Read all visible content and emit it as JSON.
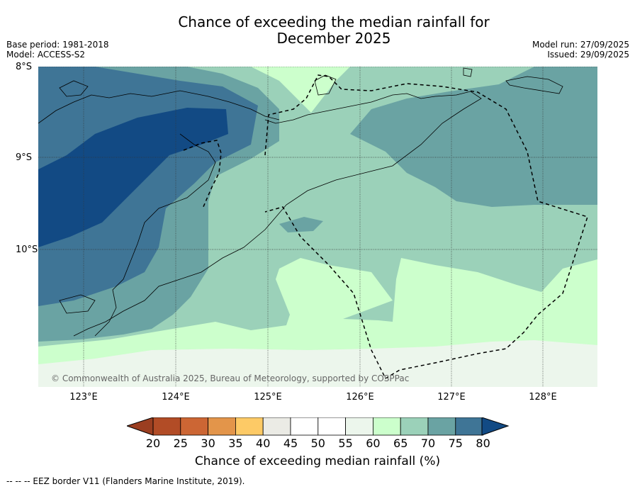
{
  "title": {
    "line1": "Chance of exceeding the median rainfall for",
    "line2": "December 2025"
  },
  "meta": {
    "base_period": "Base period: 1981-2018",
    "model": "Model: ACCESS-S2",
    "model_run": "Model run: 27/09/2025",
    "issued": "Issued: 29/09/2025"
  },
  "axes": {
    "lat_labels": [
      "8°S",
      "9°S",
      "10°S"
    ],
    "lon_labels": [
      "123°E",
      "124°E",
      "125°E",
      "126°E",
      "127°E",
      "128°E"
    ]
  },
  "copyright": "© Commonwealth of Australia 2025, Bureau of Meteorology, supported by COSPPac",
  "colorbar": {
    "title": "Chance of exceeding median rainfall (%)",
    "ticks": [
      "20",
      "25",
      "30",
      "35",
      "40",
      "45",
      "50",
      "55",
      "60",
      "65",
      "70",
      "75",
      "80"
    ],
    "colors": [
      "#b24c26",
      "#cc6634",
      "#e3954a",
      "#fdca66",
      "#ebebe5",
      "#ffffff",
      "#ffffff",
      "#ecf6ec",
      "#ccffcc",
      "#9bd1b9",
      "#6aa3a3",
      "#3f7596",
      "#124a84"
    ],
    "low_color": "#9b3e20",
    "high_color": "#124a84"
  },
  "footer": "--  --  -- EEZ border V11 (Flanders Marine Institute, 2019)."
}
